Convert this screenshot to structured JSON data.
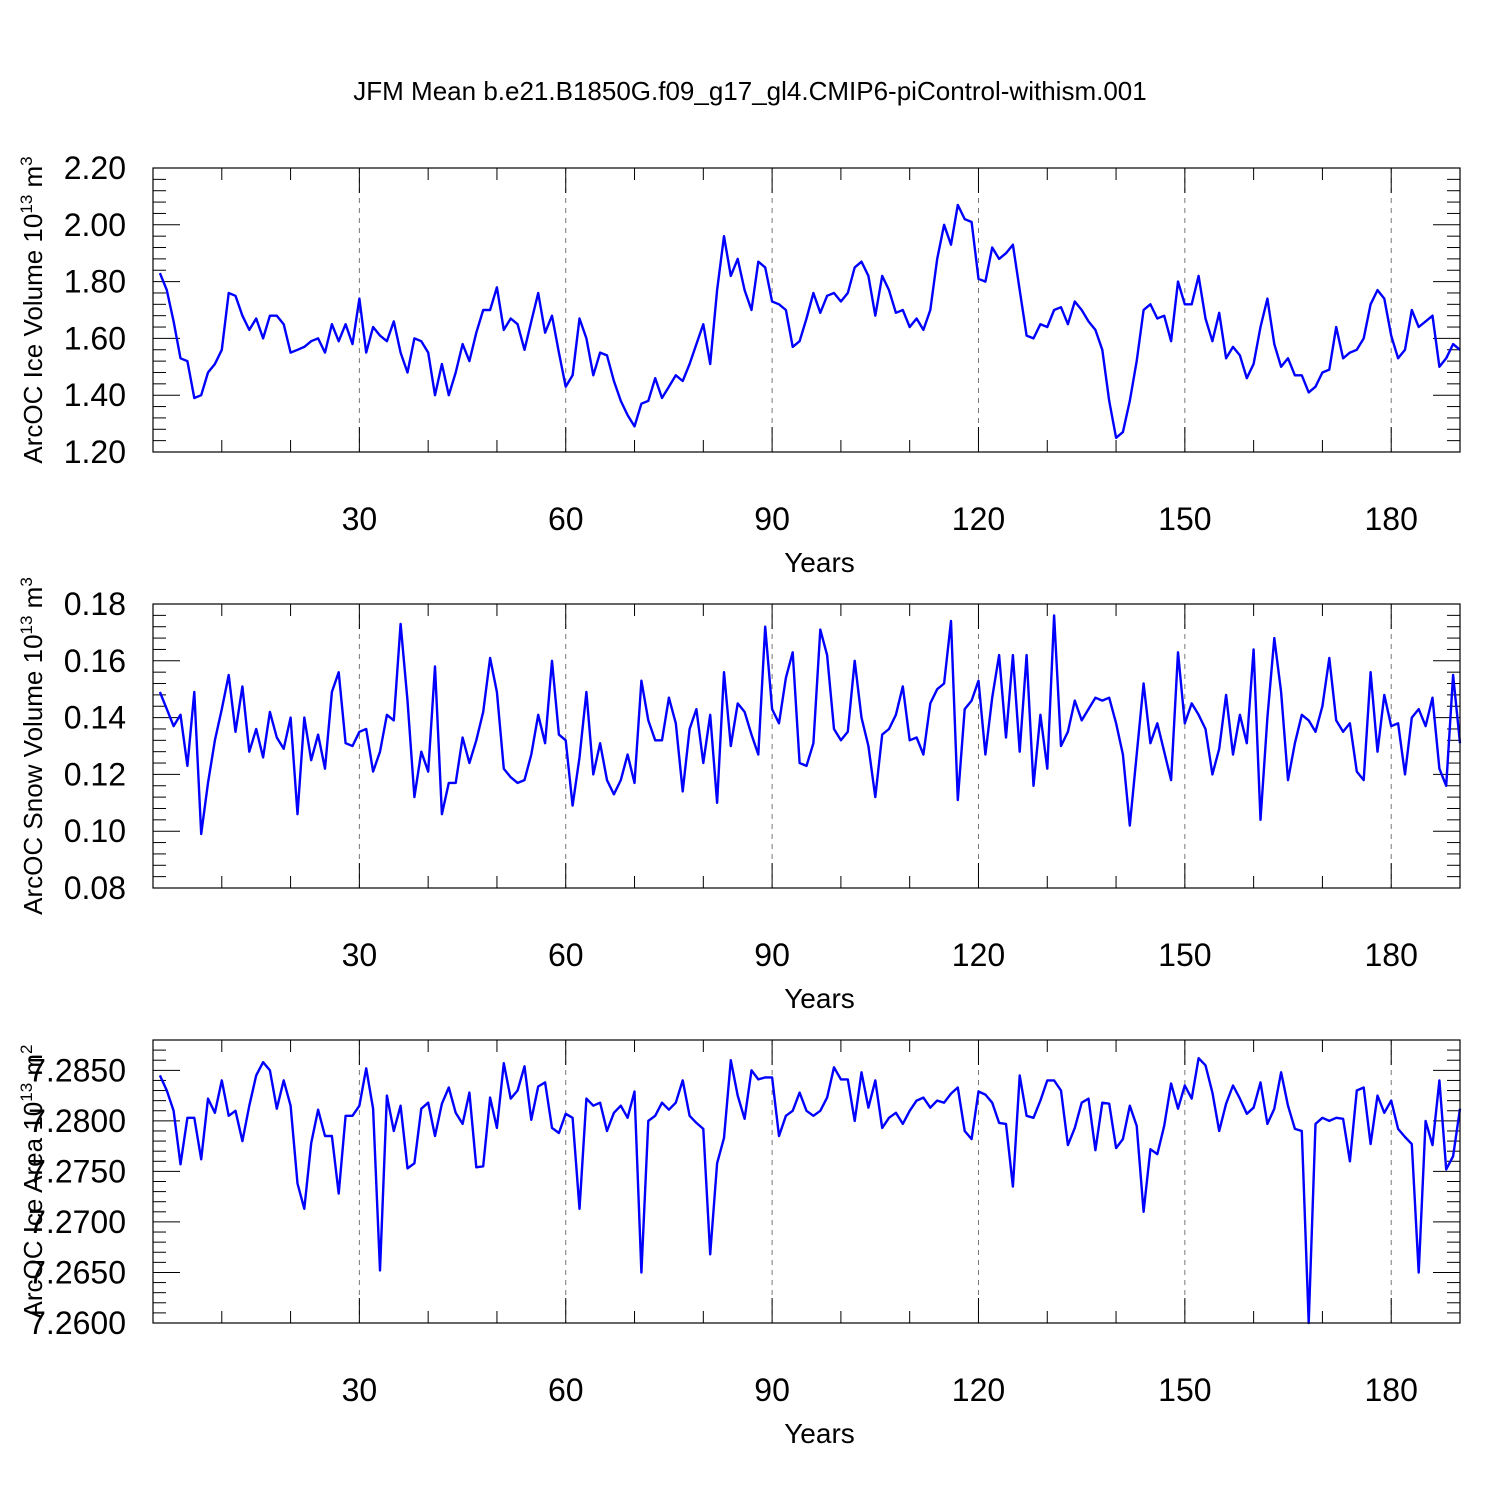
{
  "figure": {
    "title": "JFM Mean b.e21.B1850G.f09_g17_gl4.CMIP6-piControl-withism.001"
  },
  "chart_data": [
    {
      "type": "line",
      "xlabel": "Years",
      "ylabel": "ArcOC Ice Volume 10",
      "ylabel_exp": "13",
      "ylabel_unit": " m",
      "ylabel_unit_exp": "3",
      "xlim": [
        1,
        190
      ],
      "ylim": [
        1.2,
        2.2
      ],
      "xticks": [
        30,
        60,
        90,
        120,
        150,
        180
      ],
      "yticks": [
        1.2,
        1.4,
        1.6,
        1.8,
        2.0,
        2.2
      ],
      "ytick_labels": [
        "1.20",
        "1.40",
        "1.60",
        "1.80",
        "2.00",
        "2.20"
      ],
      "grid": "vertical dashed at major x ticks",
      "color": "#0000ff",
      "values": [
        1.83,
        1.77,
        1.66,
        1.53,
        1.52,
        1.39,
        1.4,
        1.48,
        1.51,
        1.56,
        1.76,
        1.75,
        1.68,
        1.63,
        1.67,
        1.6,
        1.68,
        1.68,
        1.65,
        1.55,
        1.56,
        1.57,
        1.59,
        1.6,
        1.55,
        1.65,
        1.59,
        1.65,
        1.58,
        1.74,
        1.55,
        1.64,
        1.61,
        1.59,
        1.66,
        1.55,
        1.48,
        1.6,
        1.59,
        1.55,
        1.4,
        1.51,
        1.4,
        1.48,
        1.58,
        1.52,
        1.62,
        1.7,
        1.7,
        1.78,
        1.63,
        1.67,
        1.65,
        1.56,
        1.66,
        1.76,
        1.62,
        1.68,
        1.55,
        1.43,
        1.47,
        1.67,
        1.6,
        1.47,
        1.55,
        1.54,
        1.45,
        1.38,
        1.33,
        1.29,
        1.37,
        1.38,
        1.46,
        1.39,
        1.43,
        1.47,
        1.45,
        1.51,
        1.58,
        1.65,
        1.51,
        1.77,
        1.96,
        1.82,
        1.88,
        1.77,
        1.7,
        1.87,
        1.85,
        1.73,
        1.72,
        1.7,
        1.57,
        1.59,
        1.67,
        1.76,
        1.69,
        1.75,
        1.76,
        1.73,
        1.76,
        1.85,
        1.87,
        1.82,
        1.68,
        1.82,
        1.77,
        1.69,
        1.7,
        1.64,
        1.67,
        1.63,
        1.7,
        1.88,
        2.0,
        1.93,
        2.07,
        2.02,
        2.01,
        1.81,
        1.8,
        1.92,
        1.88,
        1.9,
        1.93,
        1.77,
        1.61,
        1.6,
        1.65,
        1.64,
        1.7,
        1.71,
        1.65,
        1.73,
        1.7,
        1.66,
        1.63,
        1.56,
        1.38,
        1.25,
        1.27,
        1.38,
        1.52,
        1.7,
        1.72,
        1.67,
        1.68,
        1.59,
        1.8,
        1.72,
        1.72,
        1.82,
        1.67,
        1.59,
        1.69,
        1.53,
        1.57,
        1.54,
        1.46,
        1.51,
        1.64,
        1.74,
        1.58,
        1.5,
        1.53,
        1.47,
        1.47,
        1.41,
        1.43,
        1.48,
        1.49,
        1.64,
        1.53,
        1.55,
        1.56,
        1.6,
        1.72,
        1.77,
        1.74,
        1.61,
        1.53,
        1.56,
        1.7,
        1.64,
        1.66,
        1.68,
        1.5,
        1.53,
        1.58,
        1.56
      ]
    },
    {
      "type": "line",
      "xlabel": "Years",
      "ylabel": "ArcOC Snow Volume 10",
      "ylabel_exp": "13",
      "ylabel_unit": " m",
      "ylabel_unit_exp": "3",
      "xlim": [
        1,
        190
      ],
      "ylim": [
        0.08,
        0.18
      ],
      "xticks": [
        30,
        60,
        90,
        120,
        150,
        180
      ],
      "yticks": [
        0.08,
        0.1,
        0.12,
        0.14,
        0.16,
        0.18
      ],
      "ytick_labels": [
        "0.08",
        "0.10",
        "0.12",
        "0.14",
        "0.16",
        "0.18"
      ],
      "grid": "vertical dashed at major x ticks",
      "color": "#0000ff",
      "values": [
        0.149,
        0.143,
        0.137,
        0.141,
        0.123,
        0.149,
        0.099,
        0.117,
        0.132,
        0.143,
        0.155,
        0.135,
        0.151,
        0.128,
        0.136,
        0.126,
        0.142,
        0.133,
        0.129,
        0.14,
        0.106,
        0.14,
        0.125,
        0.134,
        0.122,
        0.149,
        0.156,
        0.131,
        0.13,
        0.135,
        0.136,
        0.121,
        0.128,
        0.141,
        0.139,
        0.173,
        0.146,
        0.112,
        0.128,
        0.121,
        0.158,
        0.106,
        0.117,
        0.117,
        0.133,
        0.124,
        0.132,
        0.142,
        0.161,
        0.149,
        0.122,
        0.119,
        0.117,
        0.118,
        0.127,
        0.141,
        0.131,
        0.16,
        0.134,
        0.132,
        0.109,
        0.126,
        0.149,
        0.12,
        0.131,
        0.118,
        0.113,
        0.118,
        0.127,
        0.117,
        0.153,
        0.139,
        0.132,
        0.132,
        0.147,
        0.138,
        0.114,
        0.136,
        0.143,
        0.124,
        0.141,
        0.11,
        0.156,
        0.13,
        0.145,
        0.142,
        0.134,
        0.127,
        0.172,
        0.143,
        0.138,
        0.154,
        0.163,
        0.124,
        0.123,
        0.131,
        0.171,
        0.162,
        0.136,
        0.132,
        0.135,
        0.16,
        0.14,
        0.13,
        0.112,
        0.134,
        0.136,
        0.141,
        0.151,
        0.132,
        0.133,
        0.127,
        0.145,
        0.15,
        0.152,
        0.174,
        0.111,
        0.143,
        0.146,
        0.153,
        0.127,
        0.147,
        0.162,
        0.133,
        0.162,
        0.128,
        0.162,
        0.116,
        0.141,
        0.122,
        0.176,
        0.13,
        0.135,
        0.146,
        0.139,
        0.143,
        0.147,
        0.146,
        0.147,
        0.138,
        0.127,
        0.102,
        0.127,
        0.152,
        0.131,
        0.138,
        0.128,
        0.118,
        0.163,
        0.138,
        0.145,
        0.141,
        0.136,
        0.12,
        0.129,
        0.148,
        0.127,
        0.141,
        0.131,
        0.164,
        0.104,
        0.14,
        0.168,
        0.149,
        0.118,
        0.131,
        0.141,
        0.139,
        0.135,
        0.144,
        0.161,
        0.139,
        0.135,
        0.138,
        0.121,
        0.118,
        0.156,
        0.128,
        0.148,
        0.137,
        0.138,
        0.12,
        0.14,
        0.143,
        0.137,
        0.147,
        0.122,
        0.116,
        0.155,
        0.131
      ]
    },
    {
      "type": "line",
      "xlabel": "Years",
      "ylabel": "ArcOC Ice Area 10",
      "ylabel_exp": "13",
      "ylabel_unit": " m",
      "ylabel_unit_exp": "2",
      "xlim": [
        1,
        190
      ],
      "ylim": [
        7.26,
        7.288
      ],
      "xticks": [
        30,
        60,
        90,
        120,
        150,
        180
      ],
      "yticks": [
        7.26,
        7.265,
        7.27,
        7.275,
        7.28,
        7.285
      ],
      "ytick_labels": [
        "7.2600",
        "7.2650",
        "7.2700",
        "7.2750",
        "7.2800",
        "7.2850"
      ],
      "grid": "vertical dashed at major x ticks",
      "color": "#0000ff",
      "values": [
        7.2845,
        7.283,
        7.281,
        7.2757,
        7.2803,
        7.2803,
        7.2762,
        7.2822,
        7.2808,
        7.284,
        7.2805,
        7.281,
        7.278,
        7.2815,
        7.2845,
        7.2858,
        7.285,
        7.2812,
        7.284,
        7.2815,
        7.2738,
        7.2713,
        7.2778,
        7.2811,
        7.2785,
        7.2785,
        7.2728,
        7.2805,
        7.2805,
        7.2815,
        7.2852,
        7.2812,
        7.2652,
        7.2825,
        7.279,
        7.2815,
        7.2753,
        7.2758,
        7.2812,
        7.2818,
        7.2785,
        7.2817,
        7.2833,
        7.2808,
        7.2797,
        7.2828,
        7.2754,
        7.2755,
        7.2823,
        7.2793,
        7.2857,
        7.2822,
        7.283,
        7.2854,
        7.2801,
        7.2834,
        7.2838,
        7.2793,
        7.2788,
        7.2807,
        7.2803,
        7.2713,
        7.2822,
        7.2815,
        7.2818,
        7.279,
        7.2808,
        7.2815,
        7.2803,
        7.2829,
        7.265,
        7.28,
        7.2805,
        7.2818,
        7.2811,
        7.2818,
        7.284,
        7.2805,
        7.2798,
        7.2792,
        7.2668,
        7.2758,
        7.2783,
        7.286,
        7.2825,
        7.2802,
        7.285,
        7.2841,
        7.2843,
        7.2843,
        7.2785,
        7.2805,
        7.281,
        7.2828,
        7.281,
        7.2805,
        7.281,
        7.2823,
        7.2853,
        7.2841,
        7.2841,
        7.28,
        7.2848,
        7.2813,
        7.284,
        7.2793,
        7.2803,
        7.2808,
        7.2797,
        7.281,
        7.282,
        7.2823,
        7.2813,
        7.282,
        7.2818,
        7.2827,
        7.2833,
        7.279,
        7.2782,
        7.2829,
        7.2826,
        7.2818,
        7.2798,
        7.2797,
        7.2735,
        7.2845,
        7.2805,
        7.2803,
        7.282,
        7.284,
        7.284,
        7.283,
        7.2776,
        7.2793,
        7.2818,
        7.2822,
        7.2771,
        7.2818,
        7.2817,
        7.2773,
        7.2782,
        7.2815,
        7.2795,
        7.271,
        7.2772,
        7.2767,
        7.2795,
        7.2837,
        7.2812,
        7.2835,
        7.2822,
        7.2862,
        7.2855,
        7.2828,
        7.279,
        7.2817,
        7.2835,
        7.2822,
        7.2807,
        7.2813,
        7.2838,
        7.2797,
        7.2812,
        7.2848,
        7.2815,
        7.2792,
        7.279,
        7.26,
        7.2797,
        7.2803,
        7.28,
        7.2803,
        7.2802,
        7.276,
        7.283,
        7.2833,
        7.2777,
        7.2825,
        7.2808,
        7.282,
        7.2792,
        7.2784,
        7.2777,
        7.265,
        7.28,
        7.2776,
        7.284,
        7.2752,
        7.2765,
        7.2812
      ]
    }
  ]
}
